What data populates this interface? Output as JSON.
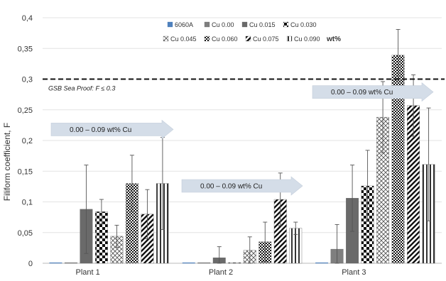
{
  "chart_data": {
    "type": "bar",
    "ylabel": "Filiform coefficient, F",
    "xlabel": "",
    "ylim": [
      0,
      0.4
    ],
    "yticks": [
      "0",
      "0,05",
      "0,1",
      "0,15",
      "0,2",
      "0,25",
      "0,3",
      "0,35",
      "0,4"
    ],
    "categories": [
      "Plant 1",
      "Plant 2",
      "Plant 3"
    ],
    "legend_unit": "wt%",
    "series": [
      {
        "name": "6060A",
        "values": [
          0.001,
          0.001,
          0.001
        ],
        "errors": [
          0,
          0,
          0
        ],
        "pattern": "blue"
      },
      {
        "name": "Cu 0.00",
        "values": [
          0.001,
          0.001,
          0.023
        ],
        "errors": [
          0,
          0,
          0.04
        ],
        "pattern": "solid"
      },
      {
        "name": "Cu 0.015",
        "values": [
          0.088,
          0.009,
          0.106
        ],
        "errors": [
          0.072,
          0.018,
          0.054
        ],
        "pattern": "dark"
      },
      {
        "name": "Cu 0.030",
        "values": [
          0.084,
          0.001,
          0.126
        ],
        "errors": [
          0.02,
          0,
          0.058
        ],
        "pattern": "checker"
      },
      {
        "name": "Cu 0.045",
        "values": [
          0.044,
          0.021,
          0.238
        ],
        "errors": [
          0.018,
          0.022,
          0.058
        ],
        "pattern": "cross"
      },
      {
        "name": "Cu 0.060",
        "values": [
          0.13,
          0.035,
          0.339
        ],
        "errors": [
          0.046,
          0.032,
          0.042
        ],
        "pattern": "grid"
      },
      {
        "name": "Cu 0.075",
        "values": [
          0.08,
          0.104,
          0.257
        ],
        "errors": [
          0.04,
          0.043,
          0.05
        ],
        "pattern": "diag"
      },
      {
        "name": "Cu 0.090",
        "values": [
          0.13,
          0.057,
          0.161
        ],
        "errors": [
          0.075,
          0.01,
          0.092
        ],
        "pattern": "vert"
      }
    ],
    "reference_line": {
      "value": 0.3,
      "label": "GSB Sea Proof: F ≤ 0.3"
    },
    "annotations": [
      {
        "text": "0.00    –    0.09 wt% Cu",
        "group": "Plant 1",
        "y": 0.218
      },
      {
        "text": "0.00    –    0.09 wt% Cu",
        "group": "Plant 2",
        "y": 0.126
      },
      {
        "text": "0.00    –    0.09 wt% Cu",
        "group": "Plant 3",
        "y": 0.279
      }
    ],
    "grid": true,
    "legend_position": "top"
  }
}
